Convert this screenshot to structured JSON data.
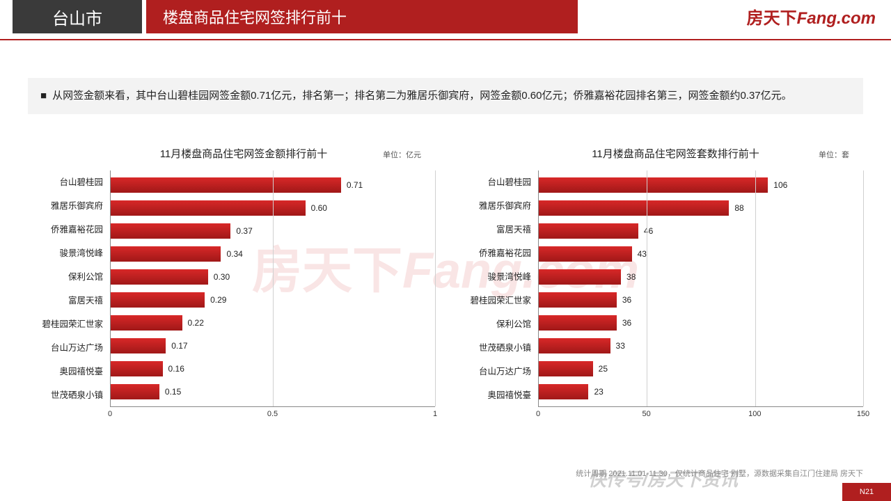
{
  "header": {
    "city": "台山市",
    "title": "楼盘商品住宅网签排行前十",
    "logo_cn": "房天下",
    "logo_en": "Fang.com",
    "city_bg": "#3a3a3a",
    "title_bg": "#b01f1f",
    "rule_color": "#b01f1f"
  },
  "summary": {
    "text": "从网签金额来看，其中台山碧桂园网签金额0.71亿元，排名第一；排名第二为雅居乐御宾府，网签金额0.60亿元；侨雅嘉裕花园排名第三，网签金额约0.37亿元。"
  },
  "watermark": {
    "cn": "房天下",
    "en": "Fang.com",
    "color": "rgba(208,40,40,0.12)"
  },
  "chart_left": {
    "type": "bar-horizontal",
    "title": "11月楼盘商品住宅网签金额排行前十",
    "unit_label": "单位：亿元",
    "categories": [
      "台山碧桂园",
      "雅居乐御宾府",
      "侨雅嘉裕花园",
      "骏景湾悦峰",
      "保利公馆",
      "富居天禧",
      "碧桂园荣汇世家",
      "台山万达广场",
      "奥园禧悦臺",
      "世茂硒泉小镇"
    ],
    "values": [
      0.71,
      0.6,
      0.37,
      0.34,
      0.3,
      0.29,
      0.22,
      0.17,
      0.16,
      0.15
    ],
    "value_labels": [
      "0.71",
      "0.60",
      "0.37",
      "0.34",
      "0.30",
      "0.29",
      "0.22",
      "0.17",
      "0.16",
      "0.15"
    ],
    "bar_color_top": "#d82828",
    "bar_color_bottom": "#a01818",
    "xmin": 0,
    "xmax": 1,
    "xticks": [
      0,
      0.5,
      1
    ],
    "xtick_labels": [
      "0",
      "0.5",
      "1"
    ],
    "grid_color": "#d0d0d0",
    "axis_color": "#888888",
    "title_fontsize": 15,
    "label_fontsize": 12.5
  },
  "chart_right": {
    "type": "bar-horizontal",
    "title": "11月楼盘商品住宅网签套数排行前十",
    "unit_label": "单位：套",
    "categories": [
      "台山碧桂园",
      "雅居乐御宾府",
      "富居天禧",
      "侨雅嘉裕花园",
      "骏景湾悦峰",
      "碧桂园荣汇世家",
      "保利公馆",
      "世茂硒泉小镇",
      "台山万达广场",
      "奥园禧悦臺"
    ],
    "values": [
      106,
      88,
      46,
      43,
      38,
      36,
      36,
      33,
      25,
      23
    ],
    "value_labels": [
      "106",
      "88",
      "46",
      "43",
      "38",
      "36",
      "36",
      "33",
      "25",
      "23"
    ],
    "bar_color_top": "#d82828",
    "bar_color_bottom": "#a01818",
    "xmin": 0,
    "xmax": 150,
    "xticks": [
      0,
      50,
      100,
      150
    ],
    "xtick_labels": [
      "0",
      "50",
      "100",
      "150"
    ],
    "grid_color": "#d0d0d0",
    "axis_color": "#888888",
    "title_fontsize": 15,
    "label_fontsize": 12.5
  },
  "footnote": "统计周期 2021.11.01-11.30，仅统计商品住宅 别墅，源数据采集自江门住建局 房天下",
  "bottom_watermark": "快传号/房天下资讯",
  "page_corner": "N21"
}
